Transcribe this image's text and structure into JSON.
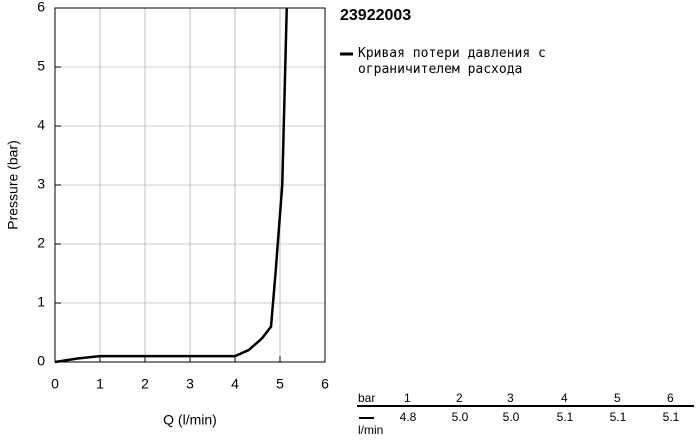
{
  "chart_data": {
    "type": "line",
    "title": "23922003",
    "x_label": "Q (l/min)",
    "y_label": "Pressure (bar)",
    "xlim": [
      0,
      6
    ],
    "xticks": [
      0,
      1,
      2,
      3,
      4,
      5,
      6
    ],
    "ylim": [
      0,
      6
    ],
    "yticks": [
      0,
      1,
      2,
      3,
      4,
      5,
      6
    ],
    "grid": true,
    "series": [
      {
        "name": "Кривая потери давления с ограничителем расхода",
        "color": "#000000",
        "x": [
          0,
          0.5,
          1,
          2,
          3,
          4,
          4.3,
          4.6,
          4.8,
          4.9,
          5.0,
          5.05,
          5.1,
          5.15
        ],
        "values": [
          0,
          0.06,
          0.1,
          0.1,
          0.1,
          0.1,
          0.2,
          0.4,
          0.6,
          1.5,
          2.5,
          3.0,
          4.5,
          6
        ]
      }
    ]
  },
  "table": {
    "header_label": "bar",
    "columns": [
      "1",
      "2",
      "3",
      "4",
      "5",
      "6"
    ],
    "row_label": "l/min",
    "values": [
      "4.8",
      "5.0",
      "5.0",
      "5.1",
      "5.1",
      "5.1"
    ]
  }
}
